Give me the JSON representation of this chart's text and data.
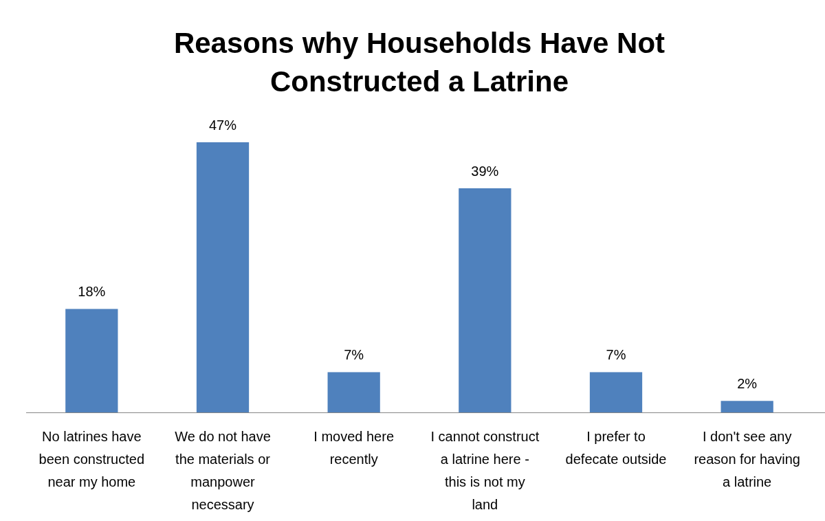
{
  "chart_data": {
    "type": "bar",
    "title": "Reasons why Households Have Not Constructed a Latrine",
    "categories": [
      "No latrines have been constructed near my home",
      "We do not have the materials or manpower necessary",
      "I moved here recently",
      "I cannot construct a latrine here - this is not my land",
      "I prefer to defecate outside",
      "I don't see any reason for having a latrine"
    ],
    "values": [
      18,
      47,
      7,
      39,
      7,
      2
    ],
    "value_labels": [
      "18%",
      "47%",
      "7%",
      "39%",
      "7%",
      "2%"
    ],
    "color": "#4f81bd",
    "tick_labels": "x"
  }
}
